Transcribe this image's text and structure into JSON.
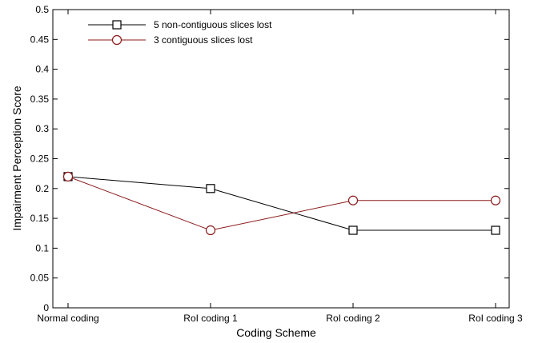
{
  "chart_data": {
    "type": "line",
    "categories": [
      "Normal coding",
      "RoI coding 1",
      "RoI coding 2",
      "RoI coding 3"
    ],
    "series": [
      {
        "name": "5 non-contiguous slices lost",
        "values": [
          0.22,
          0.2,
          0.13,
          0.13
        ],
        "color": "#000000",
        "marker": "square"
      },
      {
        "name": "3 contiguous slices lost",
        "values": [
          0.22,
          0.13,
          0.18,
          0.18
        ],
        "color": "#8b1a1a",
        "marker": "circle"
      }
    ],
    "xlabel": "Coding Scheme",
    "ylabel": "Impairment Perception Score",
    "ylim": [
      0,
      0.5
    ],
    "yticks": [
      0,
      0.05,
      0.1,
      0.15,
      0.2,
      0.25,
      0.3,
      0.35,
      0.4,
      0.45,
      0.5
    ],
    "ytick_labels": [
      "0",
      "0.05",
      "0.1",
      "0.15",
      "0.2",
      "0.25",
      "0.3",
      "0.35",
      "0.4",
      "0.45",
      "0.5"
    ],
    "grid": false,
    "legend_position": "top-left"
  }
}
